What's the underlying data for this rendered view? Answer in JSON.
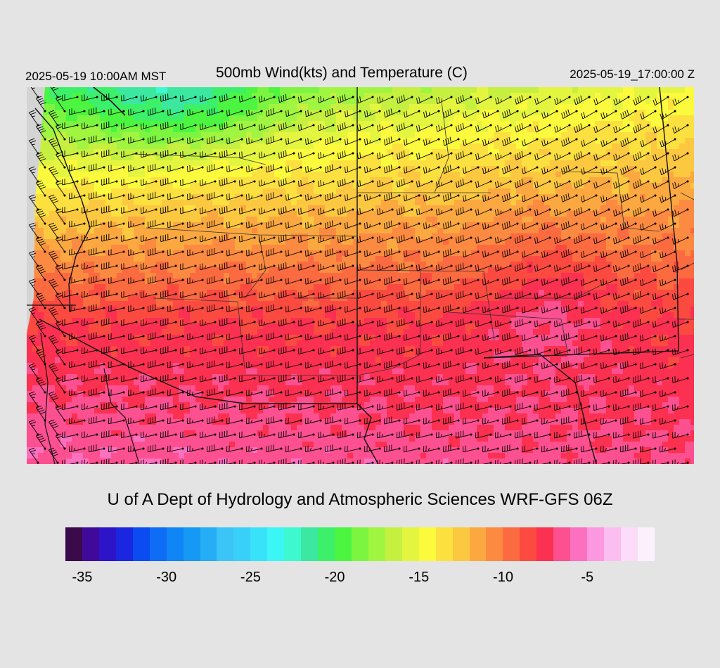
{
  "header": {
    "valid_local": "2025-05-19 10:00AM MST",
    "title": "500mb Wind(kts) and Temperature (C)",
    "valid_utc": "2025-05-19_17:00:00 Z"
  },
  "footer": {
    "credit": "U of A Dept of Hydrology and Atmospheric Sciences WRF-GFS 06Z"
  },
  "colorbar": {
    "min": -36,
    "max": -1,
    "step": 1,
    "colors": [
      "#3a0a4a",
      "#40099a",
      "#2d14c8",
      "#1a26e0",
      "#0a4cf0",
      "#0f6cf5",
      "#1085f5",
      "#1699f5",
      "#25adf5",
      "#3cc4f8",
      "#38d0f8",
      "#38e2f8",
      "#3cf5f5",
      "#3ef8d0",
      "#3ce8a0",
      "#3cf06a",
      "#4cf540",
      "#7cf540",
      "#a0f540",
      "#c6f040",
      "#e4f540",
      "#fcfa3c",
      "#fce040",
      "#fcc840",
      "#fca840",
      "#fc8a40",
      "#fc6a40",
      "#fc4a40",
      "#fc3050",
      "#fc5090",
      "#fc70c0",
      "#fc98e0",
      "#fcbef0",
      "#fcdcf8",
      "#fcf0fc"
    ],
    "tick_labels": [
      "-35",
      "-30",
      "-25",
      "-20",
      "-15",
      "-10",
      "-5"
    ]
  },
  "map": {
    "land_bg": "#d4d4d4",
    "temperature_field": {
      "units": "C",
      "north_west": -20,
      "north_east": -15,
      "south": -8,
      "south_east_max": -6
    },
    "wind_barbs": {
      "units": "kts",
      "direction": "from west-southwest",
      "typical_speed": 30
    }
  }
}
